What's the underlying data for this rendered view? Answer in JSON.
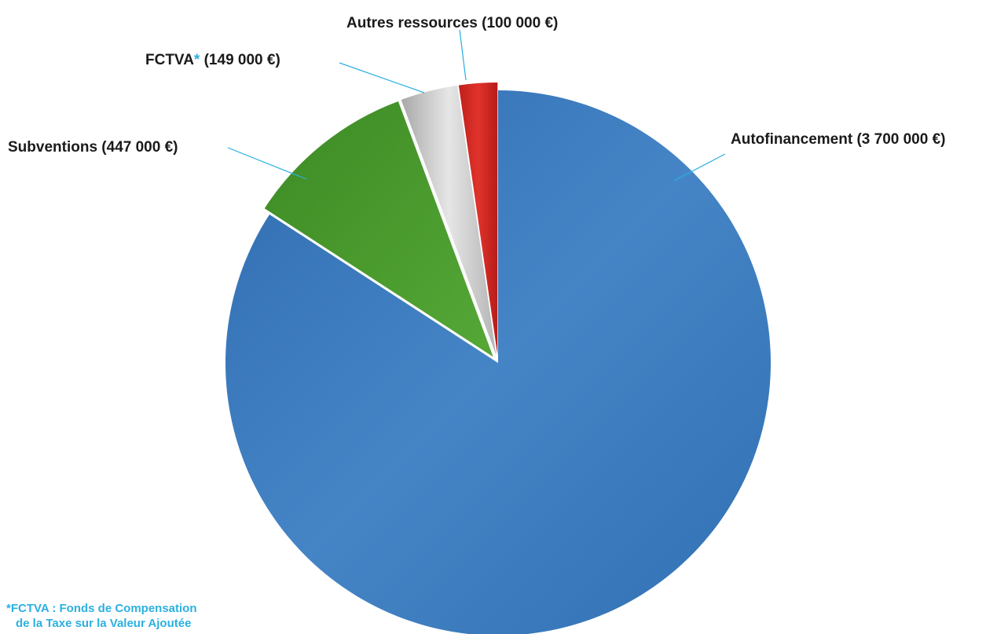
{
  "chart_data": {
    "type": "pie",
    "title": "",
    "slices": [
      {
        "label": "Autofinancement",
        "amount_text": " (3 700 000 €)",
        "value": 3700000,
        "color": "#3a78bc",
        "exploded": false
      },
      {
        "label": "Subventions",
        "amount_text": " (447 000 €)",
        "value": 447000,
        "color": "#4a9a2e",
        "exploded": true
      },
      {
        "label": "FCTVA",
        "marker": "*",
        "amount_text": " (149 000 €)",
        "value": 149000,
        "color": "#c9c9c9",
        "exploded": true
      },
      {
        "label": "Autres ressources",
        "amount_text": " (100 000 €)",
        "value": 100000,
        "color": "#d42a25",
        "exploded": true
      }
    ],
    "footnote": {
      "line1": "*FCTVA : Fonds de Compensation",
      "line2": "de la Taxe sur la Valeur Ajoutée"
    }
  }
}
